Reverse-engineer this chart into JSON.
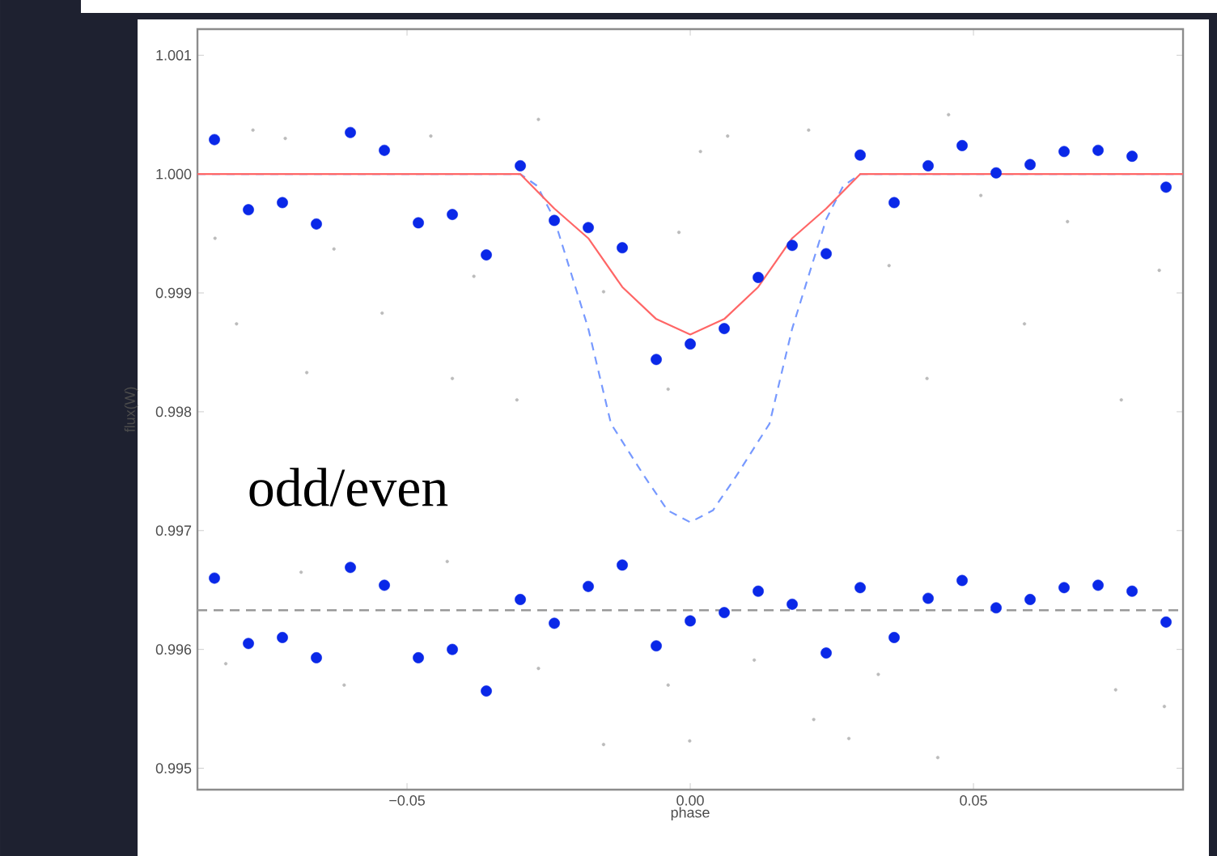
{
  "chart_data": {
    "type": "scatter",
    "xlabel": "phase",
    "ylabel": "flux(W)",
    "xlim": [
      -0.087,
      0.087
    ],
    "ylim": [
      0.99482,
      1.00122
    ],
    "xticks": [
      {
        "value": -0.05,
        "label": "−0.05"
      },
      {
        "value": 0,
        "label": "0.00"
      },
      0.05
    ],
    "yticks": [
      0.995,
      0.996,
      0.997,
      0.998,
      0.999,
      {
        "value": 1.0,
        "label": "1.000"
      },
      1.001
    ],
    "grid": false,
    "annotations": [
      "odd/even"
    ],
    "ref_lines": [
      {
        "axis": "y",
        "value": 0.99633,
        "color": "#999999",
        "line_style": "dashed"
      }
    ],
    "series": [
      {
        "color": "#bbbbbb",
        "marker": "circle",
        "x": [
          -0.0772,
          -0.0715,
          -0.0458,
          -0.0268,
          0.0018,
          -0.0382,
          -0.0801,
          -0.0544,
          -0.042,
          -0.0677,
          -0.0306,
          -0.0039,
          -0.0153,
          -0.0839,
          -0.0629,
          0.0066,
          0.0209,
          0.0456,
          0.0666,
          0.059,
          0.0761,
          0.0418,
          -0.002,
          0.0351,
          0.0828,
          0.0513,
          -0.082,
          -0.0611,
          -0.0268,
          -0.0153,
          -0.0001,
          -0.0687,
          -0.0429,
          -0.0039,
          0.0218,
          0.028,
          0.0437,
          0.0751,
          0.0837,
          0.0113,
          0.0332
        ],
        "values": [
          1.00037,
          1.0003,
          1.00032,
          1.00046,
          1.00019,
          0.99914,
          0.99874,
          0.99883,
          0.99828,
          0.99833,
          0.9981,
          0.99819,
          0.99901,
          0.99946,
          0.99937,
          1.00032,
          1.00037,
          1.0005,
          0.9996,
          0.99874,
          0.9981,
          0.99828,
          0.99951,
          0.99923,
          0.99919,
          0.99982,
          0.99588,
          0.9957,
          0.99584,
          0.9952,
          0.99523,
          0.99665,
          0.99674,
          0.9957,
          0.99541,
          0.99525,
          0.99509,
          0.99566,
          0.99552,
          0.99591,
          0.99579
        ]
      },
      {
        "type": "line",
        "color": "#7799ff",
        "line_style": "dashed",
        "marker": "none",
        "x": [
          -0.087,
          -0.03,
          -0.027,
          -0.024,
          -0.018,
          -0.014,
          -0.008,
          -0.004,
          0,
          0.004,
          0.008,
          0.014,
          0.018,
          0.024,
          0.027,
          0.03,
          0.087
        ],
        "values": [
          1.0,
          1.0,
          0.9999,
          0.99962,
          0.9987,
          0.9979,
          0.99745,
          0.99717,
          0.99707,
          0.99717,
          0.99745,
          0.9979,
          0.9987,
          0.99962,
          0.9999,
          1.0,
          1.0
        ]
      },
      {
        "type": "line",
        "color": "#ff6666",
        "line_style": "solid",
        "marker": "none",
        "x": [
          -0.087,
          -0.03,
          -0.024,
          -0.018,
          -0.012,
          -0.006,
          0,
          0.006,
          0.012,
          0.018,
          0.024,
          0.03,
          0.087
        ],
        "values": [
          1.0,
          1.0,
          0.99971,
          0.99946,
          0.99905,
          0.99878,
          0.99865,
          0.99878,
          0.99905,
          0.99946,
          0.99971,
          1.0,
          1.0
        ]
      },
      {
        "color": "#0a28e8",
        "marker": "circle",
        "x": [
          -0.084,
          -0.078,
          -0.072,
          -0.066,
          -0.06,
          -0.054,
          -0.048,
          -0.042,
          -0.036,
          -0.03,
          -0.024,
          -0.018,
          -0.012,
          -0.006,
          0,
          0.006,
          0.012,
          0.018,
          0.024,
          0.03,
          0.036,
          0.042,
          0.048,
          0.054,
          0.06,
          0.066,
          0.072,
          0.078,
          0.084
        ],
        "values": [
          1.00029,
          0.9997,
          0.99976,
          0.99958,
          1.00035,
          1.0002,
          0.99959,
          0.99966,
          0.99932,
          1.00007,
          0.99961,
          0.99955,
          0.99938,
          0.99844,
          0.99857,
          0.9987,
          0.99913,
          0.9994,
          0.99933,
          1.00016,
          0.99976,
          1.00007,
          1.00024,
          1.00001,
          1.00008,
          1.00019,
          1.0002,
          1.00015,
          0.99989
        ]
      },
      {
        "color": "#0a28e8",
        "marker": "circle",
        "x": [
          -0.084,
          -0.078,
          -0.072,
          -0.066,
          -0.06,
          -0.054,
          -0.048,
          -0.042,
          -0.036,
          -0.03,
          -0.024,
          -0.018,
          -0.012,
          -0.006,
          0,
          0.006,
          0.012,
          0.018,
          0.024,
          0.03,
          0.036,
          0.042,
          0.048,
          0.054,
          0.06,
          0.066,
          0.072,
          0.078,
          0.084
        ],
        "values": [
          0.9966,
          0.99605,
          0.9961,
          0.99593,
          0.99669,
          0.99654,
          0.99593,
          0.996,
          0.99565,
          0.99642,
          0.99622,
          0.99653,
          0.99671,
          0.99603,
          0.99624,
          0.99631,
          0.99649,
          0.99638,
          0.99597,
          0.99652,
          0.9961,
          0.99643,
          0.99658,
          0.99635,
          0.99642,
          0.99652,
          0.99654,
          0.99649,
          0.99623
        ]
      }
    ]
  }
}
